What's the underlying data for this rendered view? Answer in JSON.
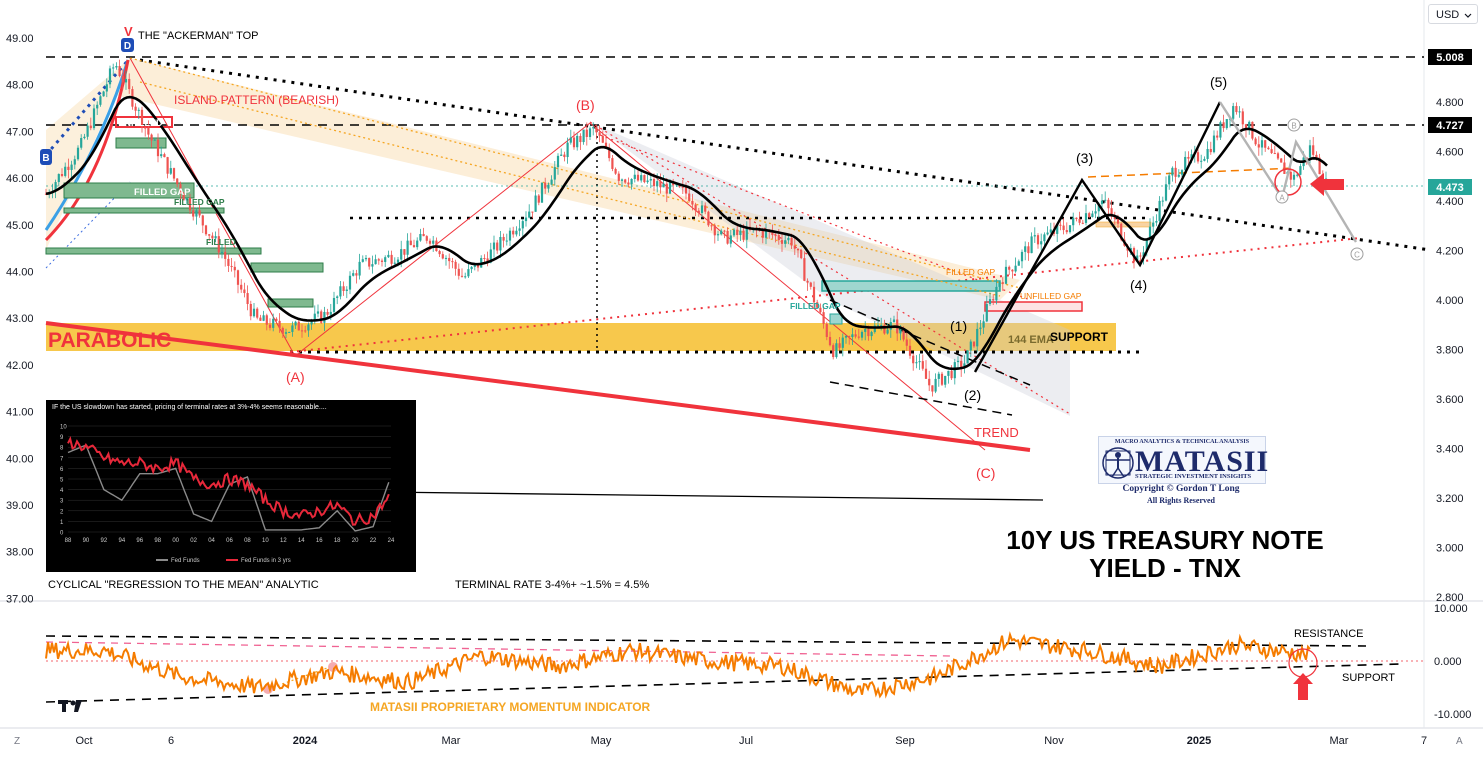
{
  "chart_data": [
    {
      "type": "line",
      "series": [
        {
          "x": [
            "2023-09-21",
            "2023-10-05",
            "2023-10-19",
            "2023-11-02",
            "2023-11-16",
            "2023-12-01",
            "2023-12-15",
            "2023-12-29",
            "2024-01-12",
            "2024-01-26",
            "2024-02-09",
            "2024-02-23",
            "2024-03-08",
            "2024-03-22",
            "2024-04-05",
            "2024-04-19",
            "2024-04-30",
            "2024-05-10",
            "2024-05-24",
            "2024-06-07",
            "2024-06-21",
            "2024-07-05",
            "2024-07-19",
            "2024-08-05",
            "2024-08-16",
            "2024-08-30",
            "2024-09-13",
            "2024-09-27",
            "2024-10-11",
            "2024-10-25",
            "2024-11-08",
            "2024-11-22",
            "2024-12-06",
            "2024-12-20",
            "2025-01-03",
            "2025-01-14",
            "2025-01-24",
            "2025-02-07",
            "2025-02-14",
            "2025-02-21"
          ],
          "values": [
            4.43,
            4.62,
            4.96,
            4.66,
            4.42,
            4.2,
            3.92,
            3.88,
            3.94,
            4.14,
            4.18,
            4.26,
            4.09,
            4.22,
            4.38,
            4.62,
            4.69,
            4.5,
            4.47,
            4.43,
            4.25,
            4.28,
            4.24,
            3.79,
            3.88,
            3.9,
            3.65,
            3.75,
            4.08,
            4.24,
            4.3,
            4.4,
            4.15,
            4.52,
            4.6,
            4.79,
            4.63,
            4.49,
            4.62,
            4.45
          ]
        }
      ],
      "title": "10Y US TREASURY NOTE YIELD - TNX",
      "ylim": [
        2.8,
        5.1
      ],
      "y_ticks": [
        "4.800",
        "4.600",
        "4.400",
        "4.200",
        "4.000",
        "3.800",
        "3.600",
        "3.400",
        "3.200",
        "3.000",
        "2.800"
      ],
      "left_ticks": [
        "49.00",
        "48.00",
        "47.00",
        "46.00",
        "45.00",
        "44.00",
        "43.00",
        "42.00",
        "41.00",
        "40.00",
        "39.00",
        "38.00",
        "37.00"
      ],
      "x_ticks": [
        "Oct",
        "6",
        "2024",
        "Mar",
        "May",
        "Jul",
        "Sep",
        "Nov",
        "2025",
        "Mar",
        "7"
      ],
      "price_labels": [
        "5.008",
        "4.727",
        "4.473"
      ],
      "currency": "USD"
    },
    {
      "type": "line",
      "title": "MATASII PROPRIETARY MOMENTUM INDICATOR",
      "ylim": [
        -12,
        12
      ],
      "y_ticks": [
        "10.000",
        "0.000",
        "-10.000"
      ],
      "series": [
        {
          "x": [
            "2023-10",
            "2023-11",
            "2023-12",
            "2024-01",
            "2024-02",
            "2024-03",
            "2024-04",
            "2024-05",
            "2024-06",
            "2024-07",
            "2024-08",
            "2024-09",
            "2024-10",
            "2024-11",
            "2024-12",
            "2025-01",
            "2025-02"
          ],
          "values": [
            2,
            -3,
            -5,
            -2,
            -4,
            1,
            -1,
            2,
            0,
            -1,
            -6,
            -3,
            4,
            2,
            -1,
            3,
            1
          ]
        }
      ]
    },
    {
      "type": "line",
      "title": "IF the US slowdown has started, pricing of terminal rates at 3%-4% seems reasonable....",
      "ylim": [
        0,
        10
      ],
      "y_ticks": [
        "10",
        "9",
        "8",
        "7",
        "6",
        "5",
        "4",
        "3",
        "2",
        "1",
        "0"
      ],
      "categories": [
        "88",
        "90",
        "92",
        "94",
        "96",
        "98",
        "00",
        "02",
        "04",
        "06",
        "08",
        "10",
        "12",
        "14",
        "16",
        "18",
        "20",
        "22",
        "24"
      ],
      "series": [
        {
          "name": "Fed Funds",
          "values": [
            7.5,
            8.2,
            4.0,
            3.0,
            5.5,
            5.5,
            6.0,
            1.7,
            1.0,
            4.5,
            5.2,
            0.2,
            0.2,
            0.2,
            0.4,
            2.0,
            0.1,
            0.5,
            5.3
          ]
        },
        {
          "name": "Fed Funds in 3 yrs",
          "values": [
            8.5,
            8.0,
            7.0,
            6.5,
            6.5,
            6.0,
            6.5,
            5.0,
            4.5,
            5.0,
            4.5,
            3.0,
            2.0,
            1.5,
            2.0,
            2.5,
            1.0,
            1.5,
            3.5
          ]
        }
      ]
    }
  ],
  "annotations": {
    "ackerman_top": "THE \"ACKERMAN\" TOP",
    "island_pattern": "ISLAND PATTERN (BEARISH)",
    "unfilled_1": "UNFILLED",
    "filled_gap_1": "FILLED GAP",
    "filled_gap_2": "FILLED GAP",
    "filled_1": "FILLED",
    "parabolic": "PARABOLIC",
    "wave_a": "(A)",
    "wave_b": "(B)",
    "wave_c": "(C)",
    "trend": "TREND",
    "filled_gap_3": "FILLED GAP",
    "filled_gap_4": "FILLED GAP",
    "unfilled_gap": "UNFILLED GAP",
    "ema_label": "144 EMA",
    "support": "SUPPORT",
    "wave_1": "(1)",
    "wave_2": "(2)",
    "wave_3": "(3)",
    "wave_4": "(4)",
    "wave_5": "(5)",
    "circle_a": "A",
    "circle_b": "B",
    "circle_c": "C",
    "cyclical": "CYCLICAL \"REGRESSION TO THE MEAN\" ANALYTIC",
    "terminal_rate": "TERMINAL RATE 3-4%+ ~1.5% = 4.5%",
    "resistance": "RESISTANCE",
    "support_low": "SUPPORT",
    "momentum_label": "MATASII PROPRIETARY MOMENTUM INDICATOR",
    "marker_v": "V",
    "marker_d": "D",
    "marker_b": "B"
  },
  "logo": {
    "top": "MACRO ANALYTICS & TECHNICAL ANALYSIS",
    "main": "MATASII",
    "sub": "STRATEGIC INVESTMENT INSIGHTS",
    "copyright": "Copyright © Gordon T Long",
    "rights": "All Rights Reserved"
  },
  "title_lines": [
    "10Y US TREASURY NOTE",
    "YIELD - TNX"
  ],
  "inset_legend": [
    "Fed Funds",
    "Fed Funds in 3 yrs"
  ],
  "footer_letters": [
    "Z",
    "A"
  ],
  "colors": {
    "price_up": "#26a69a",
    "price_down": "#ef5350",
    "ema": "#000000",
    "support_band": "#f5b819",
    "momentum": "#f57c00",
    "trend_red": "#f0333c",
    "accent_badge": "#000000"
  }
}
